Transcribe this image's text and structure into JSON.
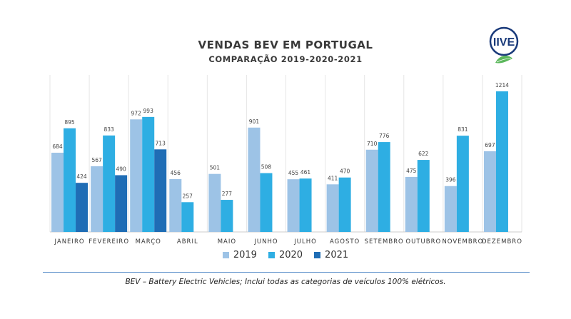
{
  "chart_data": {
    "type": "bar",
    "title": "VENDAS BEV EM PORTUGAL",
    "subtitle": "COMPARAÇÃO 2019-2020-2021",
    "categories": [
      "JANEIRO",
      "FEVEREIRO",
      "MARÇO",
      "ABRIL",
      "MAIO",
      "JUNHO",
      "JULHO",
      "AGOSTO",
      "SETEMBRO",
      "OUTUBRO",
      "NOVEMBRO",
      "DEZEMBRO"
    ],
    "series": [
      {
        "name": "2019",
        "color": "#9dc3e6",
        "values": [
          684,
          567,
          972,
          456,
          501,
          901,
          455,
          411,
          710,
          475,
          396,
          697
        ]
      },
      {
        "name": "2020",
        "color": "#2eaee3",
        "values": [
          895,
          833,
          993,
          257,
          277,
          508,
          461,
          470,
          776,
          622,
          831,
          1214
        ]
      },
      {
        "name": "2021",
        "color": "#1f6db5",
        "values": [
          424,
          490,
          713,
          null,
          null,
          null,
          null,
          null,
          null,
          null,
          null,
          null
        ]
      }
    ],
    "ylim": [
      0,
      1214
    ],
    "grid": false,
    "legend_position": "bottom"
  },
  "logo": {
    "text": "IIVE"
  },
  "footnote": "BEV – Battery Electric Vehicles; Inclui todas as categorias de veículos 100% elétricos."
}
